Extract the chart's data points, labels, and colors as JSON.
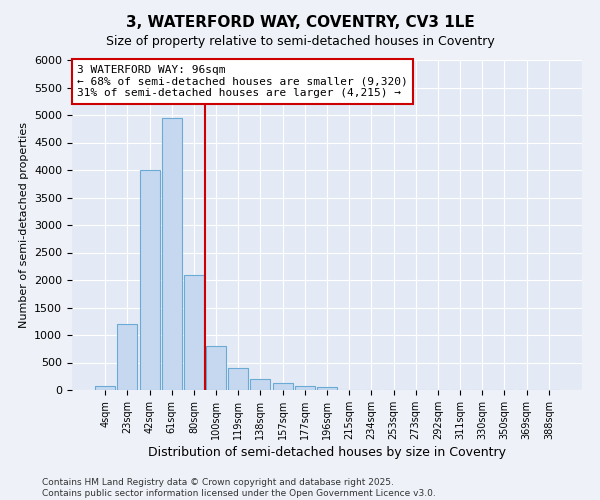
{
  "title1": "3, WATERFORD WAY, COVENTRY, CV3 1LE",
  "title2": "Size of property relative to semi-detached houses in Coventry",
  "xlabel": "Distribution of semi-detached houses by size in Coventry",
  "ylabel": "Number of semi-detached properties",
  "categories": [
    "4sqm",
    "23sqm",
    "42sqm",
    "61sqm",
    "80sqm",
    "100sqm",
    "119sqm",
    "138sqm",
    "157sqm",
    "177sqm",
    "196sqm",
    "215sqm",
    "234sqm",
    "253sqm",
    "273sqm",
    "292sqm",
    "311sqm",
    "330sqm",
    "350sqm",
    "369sqm",
    "388sqm"
  ],
  "values": [
    75,
    1200,
    4000,
    4950,
    2100,
    800,
    400,
    200,
    130,
    75,
    50,
    0,
    0,
    0,
    0,
    0,
    0,
    0,
    0,
    0,
    0
  ],
  "bar_color": "#c5d8f0",
  "bar_edge_color": "#6aaad4",
  "annotation_line1": "3 WATERFORD WAY: 96sqm",
  "annotation_line2": "← 68% of semi-detached houses are smaller (9,320)",
  "annotation_line3": "31% of semi-detached houses are larger (4,215) →",
  "ylim": [
    0,
    6000
  ],
  "yticks": [
    0,
    500,
    1000,
    1500,
    2000,
    2500,
    3000,
    3500,
    4000,
    4500,
    5000,
    5500,
    6000
  ],
  "footer1": "Contains HM Land Registry data © Crown copyright and database right 2025.",
  "footer2": "Contains public sector information licensed under the Open Government Licence v3.0.",
  "bg_color": "#eef2f8",
  "plot_bg_color": "#e4eaf5",
  "grid_color": "#ffffff",
  "red_line_color": "#cc0000",
  "title1_fontsize": 11,
  "title2_fontsize": 9,
  "annot_fontsize": 8,
  "ylabel_fontsize": 8,
  "xlabel_fontsize": 9,
  "footer_fontsize": 6.5
}
